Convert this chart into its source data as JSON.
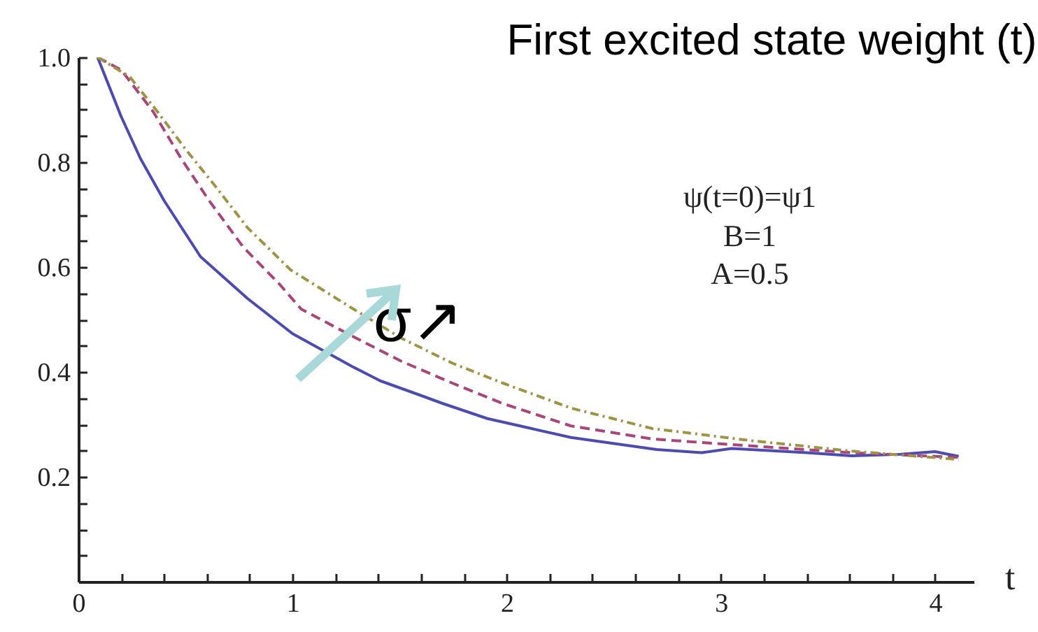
{
  "chart_data": {
    "type": "line",
    "title": "First excited state weight (t)",
    "xlabel": "t",
    "annotations": [
      "ψ(t=0)=ψ1",
      "B=1",
      "A=0.5",
      "σ↗"
    ],
    "xlim": [
      0,
      4.18
    ],
    "ylim": [
      0,
      1
    ],
    "xticks": [
      0,
      {
        "value": 0.2,
        "label": null
      },
      {
        "value": 0.4,
        "label": null
      },
      {
        "value": 0.6,
        "label": null
      },
      {
        "value": 0.8,
        "label": null
      },
      1,
      {
        "value": 1.2,
        "label": null
      },
      {
        "value": 1.4,
        "label": null
      },
      {
        "value": 1.6,
        "label": null
      },
      {
        "value": 1.8,
        "label": null
      },
      2,
      {
        "value": 2.2,
        "label": null
      },
      {
        "value": 2.4,
        "label": null
      },
      {
        "value": 2.6,
        "label": null
      },
      {
        "value": 2.8,
        "label": null
      },
      3,
      {
        "value": 3.2,
        "label": null
      },
      {
        "value": 3.4,
        "label": null
      },
      {
        "value": 3.6,
        "label": null
      },
      {
        "value": 3.8,
        "label": null
      },
      4
    ],
    "yticks": [
      {
        "value": 0.05,
        "label": null
      },
      {
        "value": 0.1,
        "label": null
      },
      {
        "value": 0.15,
        "label": null
      },
      0.2,
      {
        "value": 0.25,
        "label": null
      },
      {
        "value": 0.3,
        "label": null
      },
      {
        "value": 0.35,
        "label": null
      },
      0.4,
      {
        "value": 0.45,
        "label": null
      },
      {
        "value": 0.5,
        "label": null
      },
      {
        "value": 0.55,
        "label": null
      },
      0.6,
      {
        "value": 0.65,
        "label": null
      },
      {
        "value": 0.7,
        "label": null
      },
      {
        "value": 0.75,
        "label": null
      },
      0.8,
      {
        "value": 0.85,
        "label": null
      },
      {
        "value": 0.9,
        "label": null
      },
      {
        "value": 0.95,
        "label": null
      },
      {
        "value": 1,
        "label": "1.0"
      }
    ],
    "grid": false,
    "marker": "none",
    "series": [
      {
        "color": "#4b4bb0",
        "line_style": "solid",
        "x": [
          0.09,
          0.2,
          0.29,
          0.4,
          0.57,
          0.79,
          1.0,
          1.28,
          1.41,
          1.6,
          1.7,
          1.91,
          2.3,
          2.7,
          2.91,
          3.05,
          3.4,
          3.61,
          3.84,
          4.0,
          4.11
        ],
        "values": [
          1.0,
          0.887,
          0.807,
          0.727,
          0.62,
          0.54,
          0.473,
          0.41,
          0.383,
          0.355,
          0.34,
          0.311,
          0.275,
          0.252,
          0.246,
          0.254,
          0.246,
          0.24,
          0.243,
          0.248,
          0.239
        ]
      },
      {
        "color": "#a8457a",
        "line_style": "dashed",
        "x": [
          0.09,
          0.2,
          0.35,
          0.48,
          0.61,
          0.77,
          0.94,
          1.04,
          1.28,
          1.51,
          1.75,
          1.98,
          2.3,
          2.68,
          3.14,
          3.61,
          4.11
        ],
        "values": [
          1.0,
          0.976,
          0.896,
          0.807,
          0.727,
          0.638,
          0.567,
          0.52,
          0.468,
          0.42,
          0.378,
          0.34,
          0.297,
          0.272,
          0.259,
          0.246,
          0.237
        ]
      },
      {
        "color": "#9e9446",
        "line_style": "dotted",
        "x": [
          0.09,
          0.24,
          0.37,
          0.5,
          0.64,
          0.79,
          0.99,
          1.28,
          1.51,
          1.75,
          1.98,
          2.3,
          2.68,
          3.14,
          3.61,
          4.11
        ],
        "values": [
          1.0,
          0.963,
          0.896,
          0.825,
          0.754,
          0.675,
          0.595,
          0.521,
          0.464,
          0.416,
          0.379,
          0.331,
          0.292,
          0.269,
          0.249,
          0.233
        ]
      }
    ]
  }
}
